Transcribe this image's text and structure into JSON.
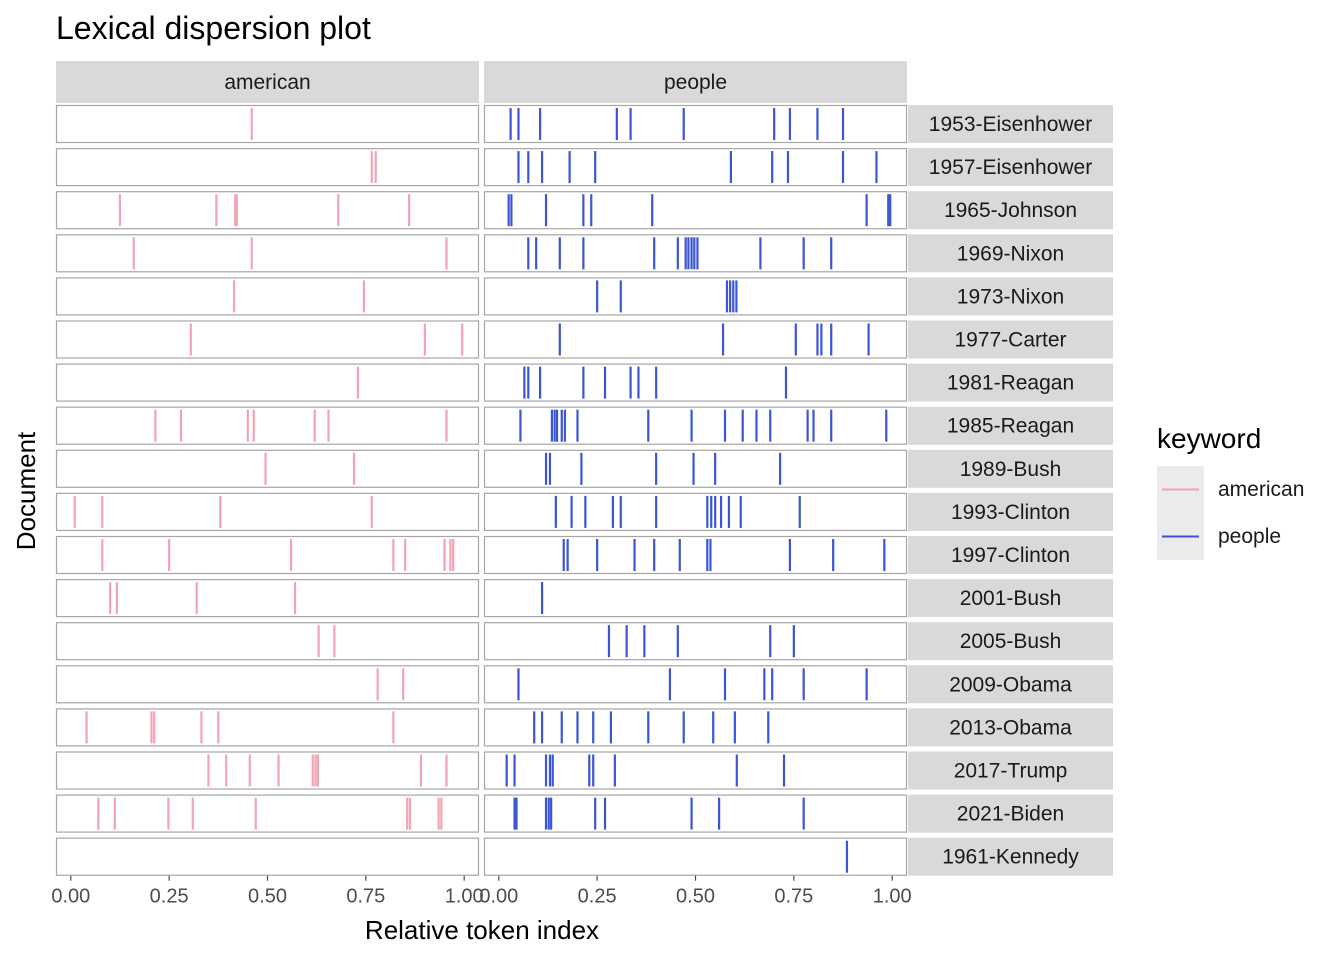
{
  "chart_data": {
    "type": "dispersion",
    "title": "Lexical dispersion plot",
    "xlabel": "Relative token index",
    "ylabel": "Document",
    "xlim": [
      0,
      1
    ],
    "x_ticks": [
      "0.00",
      "0.25",
      "0.50",
      "0.75",
      "1.00"
    ],
    "facets": [
      "american",
      "people"
    ],
    "documents": [
      "1953-Eisenhower",
      "1957-Eisenhower",
      "1965-Johnson",
      "1969-Nixon",
      "1973-Nixon",
      "1977-Carter",
      "1981-Reagan",
      "1985-Reagan",
      "1989-Bush",
      "1993-Clinton",
      "1997-Clinton",
      "2001-Bush",
      "2005-Bush",
      "2009-Obama",
      "2013-Obama",
      "2017-Trump",
      "2021-Biden",
      "1961-Kennedy"
    ],
    "legend": {
      "title": "keyword",
      "items": [
        {
          "label": "american",
          "color": "#F4A3B4"
        },
        {
          "label": "people",
          "color": "#3B55D4"
        }
      ]
    },
    "series": [
      {
        "name": "american",
        "color": "#F4A3B4",
        "points": {
          "1953-Eisenhower": [
            0.46
          ],
          "1957-Eisenhower": [
            0.765,
            0.775
          ],
          "1965-Johnson": [
            0.125,
            0.37,
            0.418,
            0.422,
            0.68,
            0.86
          ],
          "1969-Nixon": [
            0.16,
            0.46,
            0.955
          ],
          "1973-Nixon": [
            0.415,
            0.745
          ],
          "1977-Carter": [
            0.305,
            0.9,
            0.995
          ],
          "1981-Reagan": [
            0.73
          ],
          "1985-Reagan": [
            0.215,
            0.28,
            0.45,
            0.465,
            0.62,
            0.655,
            0.955
          ],
          "1989-Bush": [
            0.495,
            0.72
          ],
          "1993-Clinton": [
            0.01,
            0.08,
            0.38,
            0.765
          ],
          "1997-Clinton": [
            0.08,
            0.25,
            0.56,
            0.82,
            0.85,
            0.95,
            0.965,
            0.972
          ],
          "2001-Bush": [
            0.1,
            0.117,
            0.32,
            0.57
          ],
          "2005-Bush": [
            0.63,
            0.67
          ],
          "2009-Obama": [
            0.78,
            0.845
          ],
          "2013-Obama": [
            0.04,
            0.205,
            0.212,
            0.332,
            0.375,
            0.82
          ],
          "2017-Trump": [
            0.35,
            0.395,
            0.455,
            0.528,
            0.615,
            0.622,
            0.628,
            0.89,
            0.955
          ],
          "2021-Biden": [
            0.07,
            0.112,
            0.248,
            0.31,
            0.47,
            0.855,
            0.862,
            0.935,
            0.942
          ],
          "1961-Kennedy": []
        }
      },
      {
        "name": "people",
        "color": "#3B55D4",
        "points": {
          "1953-Eisenhower": [
            0.03,
            0.05,
            0.105,
            0.3,
            0.335,
            0.47,
            0.7,
            0.74,
            0.81,
            0.875
          ],
          "1957-Eisenhower": [
            0.05,
            0.075,
            0.11,
            0.18,
            0.245,
            0.59,
            0.695,
            0.735,
            0.875,
            0.96
          ],
          "1965-Johnson": [
            0.025,
            0.032,
            0.12,
            0.215,
            0.235,
            0.39,
            0.935,
            0.99,
            0.995
          ],
          "1969-Nixon": [
            0.075,
            0.095,
            0.155,
            0.215,
            0.395,
            0.455,
            0.475,
            0.482,
            0.49,
            0.497,
            0.505,
            0.665,
            0.775,
            0.845
          ],
          "1973-Nixon": [
            0.25,
            0.31,
            0.58,
            0.588,
            0.596,
            0.604
          ],
          "1977-Carter": [
            0.155,
            0.57,
            0.755,
            0.81,
            0.82,
            0.845,
            0.94
          ],
          "1981-Reagan": [
            0.065,
            0.075,
            0.105,
            0.215,
            0.27,
            0.335,
            0.355,
            0.4,
            0.73
          ],
          "1985-Reagan": [
            0.055,
            0.135,
            0.142,
            0.148,
            0.16,
            0.168,
            0.2,
            0.38,
            0.49,
            0.575,
            0.62,
            0.655,
            0.69,
            0.785,
            0.8,
            0.845,
            0.985
          ],
          "1989-Bush": [
            0.12,
            0.13,
            0.21,
            0.4,
            0.495,
            0.55,
            0.715
          ],
          "1993-Clinton": [
            0.145,
            0.185,
            0.22,
            0.29,
            0.31,
            0.4,
            0.53,
            0.54,
            0.55,
            0.565,
            0.585,
            0.615,
            0.765
          ],
          "1997-Clinton": [
            0.165,
            0.175,
            0.25,
            0.345,
            0.395,
            0.46,
            0.53,
            0.538,
            0.74,
            0.85,
            0.98
          ],
          "2001-Bush": [
            0.11
          ],
          "2005-Bush": [
            0.28,
            0.325,
            0.37,
            0.455,
            0.69,
            0.75
          ],
          "2009-Obama": [
            0.05,
            0.435,
            0.575,
            0.675,
            0.695,
            0.775,
            0.935
          ],
          "2013-Obama": [
            0.09,
            0.11,
            0.16,
            0.2,
            0.24,
            0.285,
            0.38,
            0.47,
            0.545,
            0.6,
            0.685
          ],
          "2017-Trump": [
            0.02,
            0.04,
            0.12,
            0.13,
            0.137,
            0.23,
            0.24,
            0.295,
            0.605,
            0.725
          ],
          "2021-Biden": [
            0.04,
            0.045,
            0.12,
            0.127,
            0.133,
            0.245,
            0.27,
            0.49,
            0.56,
            0.775
          ],
          "1961-Kennedy": [
            0.885
          ]
        }
      }
    ]
  }
}
